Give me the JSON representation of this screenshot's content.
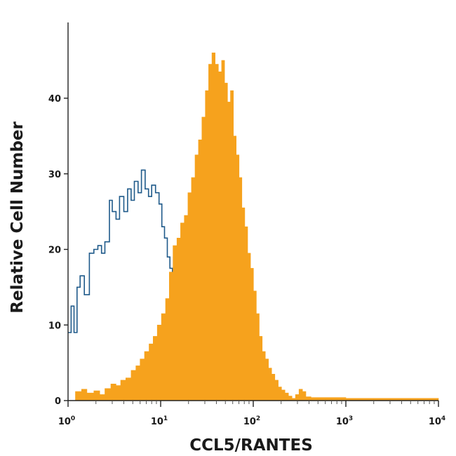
{
  "chart_data": {
    "type": "area",
    "xlabel": "CCL5/RANTES",
    "ylabel": "Relative Cell Number",
    "x_scale": "log",
    "xlim": [
      1,
      10000
    ],
    "ylim": [
      0,
      48
    ],
    "grid": false,
    "x_ticks": [
      {
        "value": 1,
        "base": "10",
        "exp": "0"
      },
      {
        "value": 10,
        "base": "10",
        "exp": "1"
      },
      {
        "value": 100,
        "base": "10",
        "exp": "2"
      },
      {
        "value": 1000,
        "base": "10",
        "exp": "3"
      },
      {
        "value": 10000,
        "base": "10",
        "exp": "4"
      }
    ],
    "y_ticks": [
      {
        "value": 0,
        "label": "0"
      },
      {
        "value": 10,
        "label": "10"
      },
      {
        "value": 20,
        "label": "20"
      },
      {
        "value": 30,
        "label": "30"
      },
      {
        "value": 40,
        "label": "40"
      }
    ],
    "series": [
      {
        "style": "outline",
        "color": "#1f5a8a",
        "points": [
          [
            1.0,
            9
          ],
          [
            1.08,
            12.5
          ],
          [
            1.16,
            9
          ],
          [
            1.25,
            15
          ],
          [
            1.35,
            16.5
          ],
          [
            1.5,
            14
          ],
          [
            1.7,
            19.5
          ],
          [
            1.9,
            20
          ],
          [
            2.1,
            20.5
          ],
          [
            2.3,
            19.5
          ],
          [
            2.5,
            21
          ],
          [
            2.8,
            26.5
          ],
          [
            3.0,
            25
          ],
          [
            3.3,
            24
          ],
          [
            3.6,
            27
          ],
          [
            4.0,
            25
          ],
          [
            4.4,
            28
          ],
          [
            4.8,
            26.5
          ],
          [
            5.2,
            29
          ],
          [
            5.7,
            27.5
          ],
          [
            6.2,
            30.5
          ],
          [
            6.8,
            28
          ],
          [
            7.4,
            27
          ],
          [
            8.0,
            28.5
          ],
          [
            8.8,
            27.5
          ],
          [
            9.6,
            26
          ],
          [
            10.3,
            23
          ],
          [
            11.0,
            21.5
          ],
          [
            11.8,
            19
          ],
          [
            12.6,
            17.5
          ],
          [
            13.4,
            16
          ]
        ]
      },
      {
        "style": "filled",
        "color": "#f6a21d",
        "points": [
          [
            1.1,
            0
          ],
          [
            1.2,
            1.2
          ],
          [
            1.4,
            1.5
          ],
          [
            1.6,
            1.0
          ],
          [
            1.9,
            1.3
          ],
          [
            2.2,
            0.8
          ],
          [
            2.5,
            1.6
          ],
          [
            2.9,
            2.2
          ],
          [
            3.3,
            2.0
          ],
          [
            3.7,
            2.7
          ],
          [
            4.2,
            3.0
          ],
          [
            4.8,
            4.0
          ],
          [
            5.4,
            4.6
          ],
          [
            6.0,
            5.5
          ],
          [
            6.7,
            6.5
          ],
          [
            7.5,
            7.5
          ],
          [
            8.3,
            8.5
          ],
          [
            9.2,
            10.0
          ],
          [
            10.2,
            11.5
          ],
          [
            11.3,
            13.5
          ],
          [
            12.4,
            17.0
          ],
          [
            13.6,
            20.5
          ],
          [
            15.0,
            21.5
          ],
          [
            16.4,
            23.5
          ],
          [
            18.0,
            24.5
          ],
          [
            19.7,
            27.5
          ],
          [
            21.5,
            29.5
          ],
          [
            23.5,
            32.5
          ],
          [
            25.6,
            34.5
          ],
          [
            27.9,
            37.5
          ],
          [
            30.4,
            41.0
          ],
          [
            33.0,
            44.5
          ],
          [
            35.8,
            46.0
          ],
          [
            38.8,
            44.5
          ],
          [
            42.0,
            43.5
          ],
          [
            45.5,
            45.0
          ],
          [
            49.0,
            42.0
          ],
          [
            52.7,
            39.5
          ],
          [
            56.7,
            41.0
          ],
          [
            61.0,
            35.0
          ],
          [
            65.5,
            32.5
          ],
          [
            70.3,
            29.5
          ],
          [
            75.4,
            25.5
          ],
          [
            81.0,
            23.0
          ],
          [
            87.0,
            19.5
          ],
          [
            93.5,
            17.5
          ],
          [
            100.5,
            14.5
          ],
          [
            108,
            11.5
          ],
          [
            116,
            8.5
          ],
          [
            125,
            6.5
          ],
          [
            135,
            5.5
          ],
          [
            146,
            4.3
          ],
          [
            158,
            3.5
          ],
          [
            171,
            2.7
          ],
          [
            186,
            1.8
          ],
          [
            202,
            1.4
          ],
          [
            220,
            1.0
          ],
          [
            240,
            0.6
          ],
          [
            262,
            0.3
          ],
          [
            286,
            0.8
          ],
          [
            312,
            1.5
          ],
          [
            340,
            1.2
          ],
          [
            370,
            0.5
          ],
          [
            420,
            0.4
          ],
          [
            600,
            0.4
          ],
          [
            1000,
            0.3
          ],
          [
            2000,
            0.3
          ],
          [
            5000,
            0.3
          ],
          [
            10000,
            0.2
          ]
        ]
      }
    ]
  }
}
